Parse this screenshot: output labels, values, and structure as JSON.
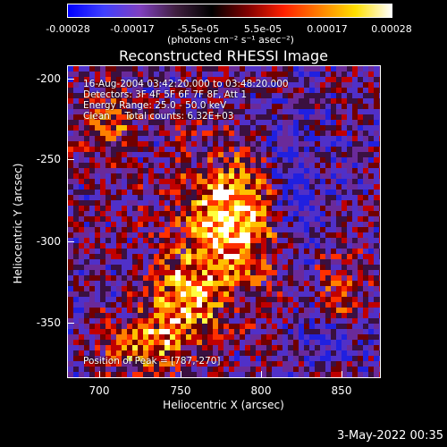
{
  "colorbar": {
    "ticks": [
      "-0.00028",
      "-0.00017",
      "-5.5e-05",
      "5.5e-05",
      "0.00017",
      "0.00028"
    ],
    "unit": "(photons cm⁻² s⁻¹ asec⁻²)",
    "colors": [
      "#0000ff",
      "#4040ff",
      "#8040c0",
      "#402040",
      "#000000",
      "#800000",
      "#ff2000",
      "#ff8000",
      "#ffe000",
      "#ffffff"
    ]
  },
  "title": "Reconstructed RHESSI Image",
  "annotations": {
    "line1": "16-Aug-2004 03:42:20.000 to 03:48:20.000",
    "line2": "Detectors: 3F 4F 5F 6F 7F 8F, Att 1",
    "line3": "Energy Range: 25.0 - 50.0 keV",
    "line4": "Clean     Total counts: 6.32E+03",
    "peak": "Position of Peak = [787,-270]"
  },
  "axes": {
    "xlabel": "Heliocentric X (arcsec)",
    "ylabel": "Heliocentric Y (arcsec)",
    "xticks": [
      "700",
      "750",
      "800",
      "850"
    ],
    "yticks": [
      "-200",
      "-250",
      "-300",
      "-350"
    ]
  },
  "timestamp": "3-May-2022 00:35"
}
